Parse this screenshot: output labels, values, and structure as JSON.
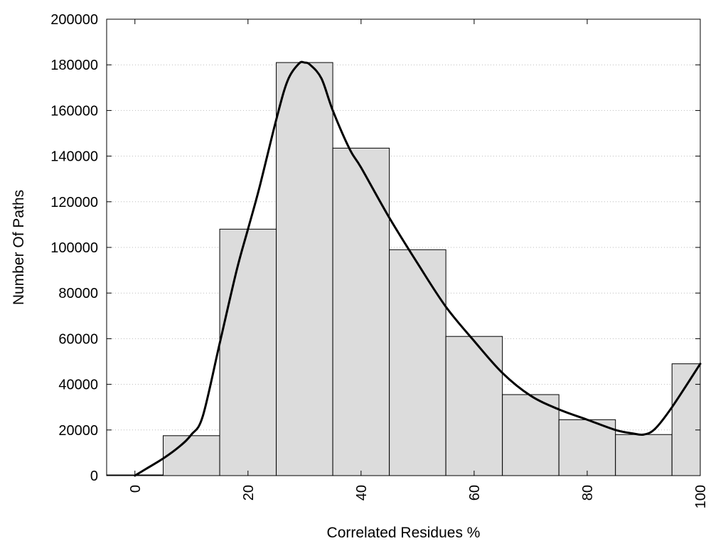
{
  "chart_data": {
    "type": "bar",
    "xlabel": "Correlated Residues %",
    "ylabel": "Number Of Paths",
    "xlim": [
      -5,
      100
    ],
    "ylim": [
      0,
      200000
    ],
    "x_ticks": [
      0,
      20,
      40,
      60,
      80,
      100
    ],
    "y_ticks": [
      0,
      20000,
      40000,
      60000,
      80000,
      100000,
      120000,
      140000,
      160000,
      180000,
      200000
    ],
    "grid": "horizontal-dotted",
    "legend": "none",
    "bins": [
      {
        "from": -5,
        "to": 5,
        "value": 300
      },
      {
        "from": 5,
        "to": 15,
        "value": 17500
      },
      {
        "from": 15,
        "to": 25,
        "value": 108000
      },
      {
        "from": 25,
        "to": 35,
        "value": 181000
      },
      {
        "from": 35,
        "to": 45,
        "value": 143500
      },
      {
        "from": 45,
        "to": 55,
        "value": 99000
      },
      {
        "from": 55,
        "to": 65,
        "value": 61000
      },
      {
        "from": 65,
        "to": 75,
        "value": 35500
      },
      {
        "from": 75,
        "to": 85,
        "value": 24500
      },
      {
        "from": 85,
        "to": 95,
        "value": 18000
      },
      {
        "from": 95,
        "to": 100,
        "value": 49000
      }
    ],
    "curve": {
      "x": [
        0,
        2,
        5,
        8,
        10,
        12,
        15,
        18,
        20,
        22,
        25,
        27,
        29,
        30,
        31,
        33,
        35,
        38,
        40,
        45,
        50,
        55,
        60,
        65,
        70,
        75,
        80,
        85,
        88,
        90,
        92,
        95,
        100
      ],
      "y": [
        0,
        3000,
        7500,
        13000,
        18000,
        26000,
        58000,
        90000,
        108000,
        126000,
        156000,
        173000,
        180500,
        181000,
        180000,
        174000,
        160000,
        143000,
        135000,
        113000,
        93000,
        74000,
        59000,
        45000,
        35000,
        29000,
        24500,
        20000,
        18500,
        18000,
        20500,
        30000,
        49000
      ]
    },
    "colors": {
      "bar_fill": "#dcdcdc",
      "bar_stroke": "#000000",
      "curve": "#000000",
      "grid": "#bbbbbb"
    }
  }
}
